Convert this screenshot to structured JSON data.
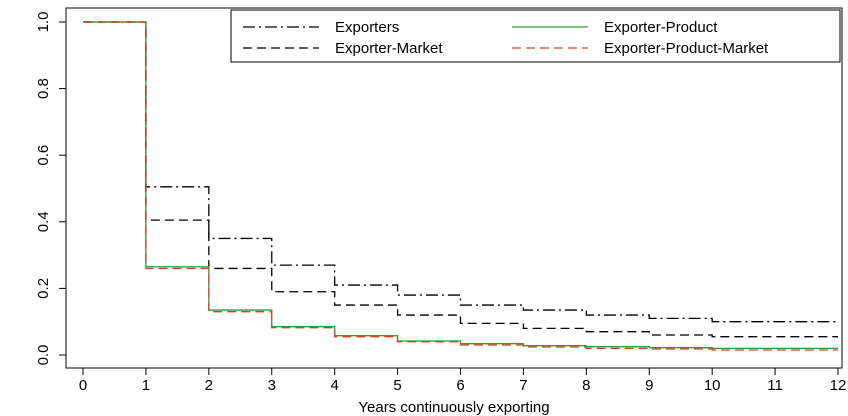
{
  "chart_data": {
    "type": "line",
    "title": "",
    "xlabel": "Years continuously exporting",
    "ylabel": "",
    "xlim": [
      0,
      12
    ],
    "ylim": [
      0,
      1
    ],
    "x_ticks": [
      0,
      1,
      2,
      3,
      4,
      5,
      6,
      7,
      8,
      9,
      10,
      11,
      12
    ],
    "y_ticks": [
      "0.0",
      "0.2",
      "0.4",
      "0.6",
      "0.8",
      "1.0"
    ],
    "grid": false,
    "legend_position": "top-right",
    "step": true,
    "x": [
      0,
      1,
      2,
      3,
      4,
      5,
      6,
      7,
      8,
      9,
      10,
      11
    ],
    "series": [
      {
        "name": "Exporters",
        "color": "#000000",
        "dash": "dash-dot",
        "values": [
          1.0,
          0.505,
          0.35,
          0.27,
          0.21,
          0.18,
          0.15,
          0.135,
          0.12,
          0.11,
          0.1,
          0.1
        ]
      },
      {
        "name": "Exporter-Market",
        "color": "#000000",
        "dash": "dashed",
        "values": [
          1.0,
          0.405,
          0.26,
          0.19,
          0.15,
          0.12,
          0.095,
          0.08,
          0.07,
          0.06,
          0.055,
          0.055
        ]
      },
      {
        "name": "Exporter-Product",
        "color": "#2e9e2e",
        "dash": "solid",
        "values": [
          1.0,
          0.265,
          0.135,
          0.085,
          0.058,
          0.042,
          0.034,
          0.028,
          0.025,
          0.022,
          0.02,
          0.02
        ]
      },
      {
        "name": "Exporter-Product-Market",
        "color": "#e03c2a",
        "dash": "dashed",
        "values": [
          1.0,
          0.26,
          0.13,
          0.082,
          0.055,
          0.04,
          0.03,
          0.024,
          0.02,
          0.018,
          0.015,
          0.015
        ]
      }
    ]
  }
}
